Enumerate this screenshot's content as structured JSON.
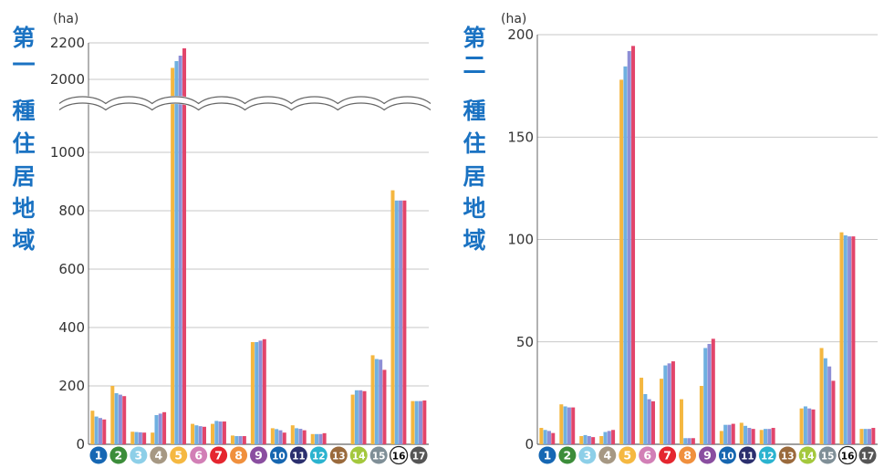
{
  "colors": {
    "series": [
      "#F4B740",
      "#6FB0E0",
      "#8E8FD6",
      "#E2456B"
    ],
    "grid": "#b5b5b5",
    "title": "#1a72c2",
    "tick_text": "#333333"
  },
  "badge_colors": [
    "#1667b3",
    "#3c8d3a",
    "#8dcfe8",
    "#a69883",
    "#f5b841",
    "#d27fb6",
    "#e5262f",
    "#f0903d",
    "#8a4ea0",
    "#1666b0",
    "#2b2f6e",
    "#2bb3cf",
    "#9a6a3c",
    "#a4c83d",
    "#7f8f97",
    "#ffffff",
    "#555555"
  ],
  "badge_text_colors": [
    "#fff",
    "#fff",
    "#fff",
    "#fff",
    "#fff",
    "#fff",
    "#fff",
    "#fff",
    "#fff",
    "#fff",
    "#fff",
    "#fff",
    "#fff",
    "#fff",
    "#fff",
    "#000",
    "#fff"
  ],
  "chart_data": [
    {
      "type": "bar",
      "title": "第一種住居地域",
      "unit": "(ha)",
      "categories": [
        "1",
        "2",
        "3",
        "4",
        "5",
        "6",
        "7",
        "8",
        "9",
        "10",
        "11",
        "12",
        "13",
        "14",
        "15",
        "16",
        "17"
      ],
      "category_labels": [
        "❶",
        "❷",
        "❸",
        "❹",
        "❺",
        "❻",
        "❼",
        "❽",
        "❾",
        "❿",
        "⓫",
        "⓬",
        "⓭",
        "⓮",
        "⓯",
        "⓰",
        "⓱"
      ],
      "axis_breaks": [
        {
          "from": 1250,
          "to": 1950
        }
      ],
      "yticks": [
        0,
        200,
        400,
        600,
        800,
        1000,
        2000,
        2200
      ],
      "ylim": [
        0,
        2200
      ],
      "grid": true,
      "series": [
        {
          "values": [
            115,
            200,
            43,
            40,
            2063,
            70,
            70,
            30,
            350,
            55,
            65,
            35,
            0,
            170,
            305,
            870,
            148
          ]
        },
        {
          "values": [
            95,
            175,
            42,
            100,
            2100,
            65,
            80,
            28,
            350,
            52,
            55,
            35,
            0,
            185,
            292,
            835,
            148
          ]
        },
        {
          "values": [
            90,
            170,
            41,
            105,
            2130,
            62,
            78,
            28,
            355,
            48,
            53,
            35,
            0,
            185,
            290,
            835,
            148
          ]
        },
        {
          "values": [
            85,
            165,
            40,
            110,
            2170,
            60,
            78,
            28,
            360,
            40,
            48,
            38,
            0,
            182,
            255,
            835,
            150
          ]
        }
      ]
    },
    {
      "type": "bar",
      "title": "第二種住居地域",
      "unit": "(ha)",
      "categories": [
        "1",
        "2",
        "3",
        "4",
        "5",
        "6",
        "7",
        "8",
        "9",
        "10",
        "11",
        "12",
        "13",
        "14",
        "15",
        "16",
        "17"
      ],
      "category_labels": [
        "❶",
        "❷",
        "❸",
        "❹",
        "❺",
        "❻",
        "❼",
        "❽",
        "❾",
        "❿",
        "⓫",
        "⓬",
        "⓭",
        "⓮",
        "⓯",
        "⓰",
        "⓱"
      ],
      "yticks": [
        0,
        50,
        100,
        150,
        200
      ],
      "ylim": [
        0,
        200
      ],
      "grid": true,
      "series": [
        {
          "values": [
            8,
            19.5,
            4,
            4,
            178,
            32.5,
            32,
            22,
            28.5,
            6.5,
            10.5,
            7,
            0,
            17.5,
            47,
            103.5,
            7.5
          ]
        },
        {
          "values": [
            7,
            18.5,
            4.5,
            6,
            184.5,
            24.5,
            38.5,
            3,
            47,
            9.5,
            9,
            7.5,
            0,
            18.5,
            42,
            102,
            7.5
          ]
        },
        {
          "values": [
            6.5,
            18,
            4,
            6.5,
            192,
            22,
            39.5,
            3,
            49,
            9.5,
            8,
            7.5,
            0,
            17.5,
            38,
            101.5,
            7.5
          ]
        },
        {
          "values": [
            5.5,
            18,
            3.5,
            7,
            194.5,
            21,
            40.5,
            3,
            51.5,
            10,
            7.5,
            8,
            0,
            17,
            31,
            101.5,
            8
          ]
        }
      ]
    }
  ]
}
